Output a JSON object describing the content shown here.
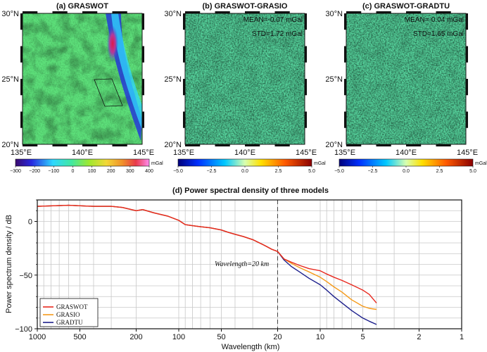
{
  "maps": [
    {
      "title": "(a) GRASWOT",
      "lat_ticks": [
        "30°N",
        "25°N",
        "20°N"
      ],
      "lon_ticks": [
        "135°E",
        "140°E",
        "145°E"
      ],
      "colorbar": {
        "ticks": [
          "−300",
          "−200",
          "−100",
          "0",
          "100",
          "200",
          "300",
          "400"
        ],
        "unit": "mGal",
        "min": -300,
        "max": 400,
        "palette": "rainbow"
      },
      "mean": "",
      "std": "",
      "show_box": true
    },
    {
      "title": "(b) GRASWOT-GRASIO",
      "lat_ticks": [
        "30°N",
        "25°N",
        "20°N"
      ],
      "lon_ticks": [
        "135°E",
        "140°E",
        "145°E"
      ],
      "colorbar": {
        "ticks": [
          "−5.0",
          "−2.5",
          "0.0",
          "2.5",
          "5.0"
        ],
        "unit": "mGal",
        "min": -5,
        "max": 5,
        "palette": "jet"
      },
      "mean": "MEAN=-0.07 mGal",
      "std": "STD=1.72 mGal",
      "show_box": false
    },
    {
      "title": "(c) GRASWOT-GRADTU",
      "lat_ticks": [
        "30°N",
        "25°N",
        "20°N"
      ],
      "lon_ticks": [
        "135°E",
        "140°E",
        "145°E"
      ],
      "colorbar": {
        "ticks": [
          "−5.0",
          "−2.5",
          "0.0",
          "2.5",
          "5.0"
        ],
        "unit": "mGal",
        "min": -5,
        "max": 5,
        "palette": "jet"
      },
      "mean": "MEAN=-0.04 mGal",
      "std": "STD=1.65 mGal",
      "show_box": false
    }
  ],
  "chart_data": {
    "type": "line",
    "title": "(d) Power spectral density of three models",
    "xlabel": "Wavelength (km)",
    "ylabel": "Power spectrum density / dB",
    "x_scale": "log-reversed",
    "xlim": [
      1000,
      1
    ],
    "ylim": [
      -100,
      20
    ],
    "x_ticks": [
      1000,
      500,
      200,
      100,
      50,
      20,
      10,
      5,
      2,
      1
    ],
    "x_tick_labels": [
      "1000",
      "500",
      "200",
      "100",
      "50",
      "20",
      "10",
      "5",
      "2",
      "1"
    ],
    "y_ticks": [
      0,
      -50,
      -100
    ],
    "y_tick_labels": [
      "0",
      "−50",
      "−100"
    ],
    "grid": true,
    "legend_position": "bottom-left",
    "annotation": {
      "text": "Wavelength=20 km",
      "x": 20
    },
    "vline_x": 20,
    "series": [
      {
        "name": "GRASWOT",
        "color": "#e8281e",
        "x": [
          1000,
          600,
          400,
          300,
          250,
          200,
          180,
          150,
          120,
          100,
          90,
          80,
          70,
          60,
          50,
          45,
          40,
          35,
          30,
          25,
          22,
          20,
          18,
          16,
          14,
          12,
          10,
          9,
          8,
          7,
          6,
          5,
          4.5,
          4
        ],
        "y": [
          14,
          15,
          14,
          14,
          13,
          10,
          11,
          8,
          5,
          1,
          -3,
          -4,
          -5,
          -6,
          -8,
          -10,
          -12,
          -14,
          -17,
          -22,
          -26,
          -28,
          -35,
          -38,
          -41,
          -44,
          -46,
          -49,
          -52,
          -55,
          -59,
          -64,
          -68,
          -76
        ]
      },
      {
        "name": "GRASIO",
        "color": "#f59a1a",
        "x": [
          1000,
          600,
          400,
          300,
          250,
          200,
          180,
          150,
          120,
          100,
          90,
          80,
          70,
          60,
          50,
          45,
          40,
          35,
          30,
          25,
          22,
          20,
          18,
          16,
          14,
          12,
          10,
          9,
          8,
          7,
          6,
          5,
          4.5,
          4
        ],
        "y": [
          14,
          15,
          14,
          14,
          13,
          10,
          11,
          8,
          5,
          1,
          -3,
          -4,
          -5,
          -6,
          -8,
          -10,
          -12,
          -14,
          -17,
          -22,
          -26,
          -28,
          -35,
          -39,
          -43,
          -47,
          -52,
          -56,
          -61,
          -66,
          -73,
          -79,
          -81,
          -82
        ]
      },
      {
        "name": "GRADTU",
        "color": "#1c1f8c",
        "x": [
          1000,
          600,
          400,
          300,
          250,
          200,
          180,
          150,
          120,
          100,
          90,
          80,
          70,
          60,
          50,
          45,
          40,
          35,
          30,
          25,
          22,
          20,
          18,
          16,
          14,
          12,
          10,
          9,
          8,
          7,
          6,
          5,
          4.5,
          4
        ],
        "y": [
          14,
          15,
          14,
          14,
          13,
          10,
          11,
          8,
          5,
          1,
          -3,
          -4,
          -5,
          -6,
          -8,
          -10,
          -12,
          -14,
          -17,
          -22,
          -26,
          -28,
          -36,
          -42,
          -47,
          -53,
          -59,
          -64,
          -70,
          -76,
          -83,
          -90,
          -93,
          -96
        ]
      }
    ]
  }
}
